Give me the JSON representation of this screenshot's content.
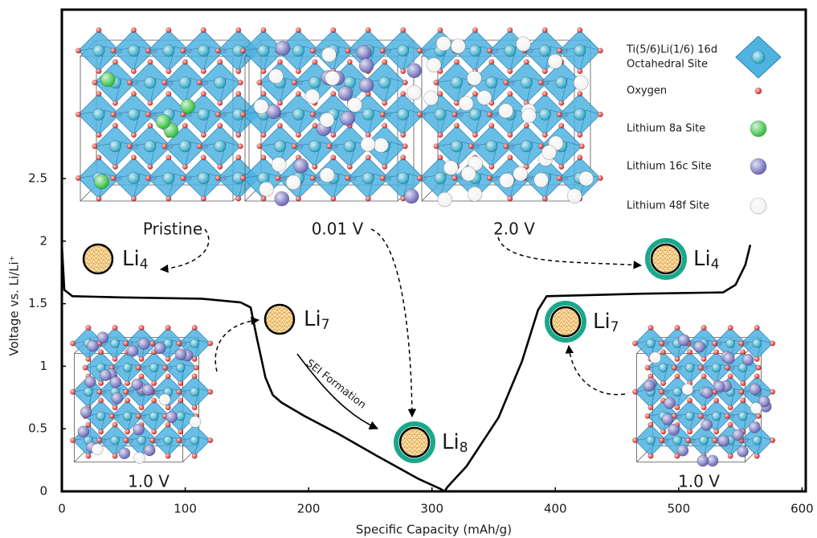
{
  "chart_data": {
    "type": "line",
    "x_label": "Specific Capacity (mAh/g)",
    "y_label": "Voltage vs. Li/Li⁺",
    "x": [
      0,
      2,
      8.5,
      47.6,
      113,
      145,
      153,
      158,
      165,
      171,
      178,
      197,
      224,
      256,
      289,
      307,
      310,
      313,
      328,
      354,
      373,
      386,
      393,
      471,
      536,
      546,
      554,
      558
    ],
    "series": [
      {
        "color": "#000000",
        "values": [
          1.97,
          1.61,
          1.56,
          1.55,
          1.54,
          1.51,
          1.47,
          1.23,
          0.91,
          0.77,
          0.71,
          0.6,
          0.46,
          0.28,
          0.1,
          0.02,
          0,
          0.04,
          0.2,
          0.59,
          1.04,
          1.45,
          1.56,
          1.58,
          1.59,
          1.65,
          1.81,
          1.97
        ]
      }
    ],
    "xlim": [
      0,
      603
    ],
    "ylim": [
      0,
      3.85
    ],
    "xticks": [
      0,
      100,
      200,
      300,
      400,
      500,
      600
    ],
    "yticks": [
      0,
      0.5,
      1,
      1.5,
      2,
      2.5
    ],
    "structures": [
      {
        "label": "Pristine"
      },
      {
        "label": "0.01 V"
      },
      {
        "label": "2.0 V"
      },
      {
        "label": "1.0 V"
      },
      {
        "label": "1.0 V"
      }
    ],
    "particles": [
      {
        "base": "Li",
        "sub": "4"
      },
      {
        "base": "Li",
        "sub": "7"
      },
      {
        "base": "Li",
        "sub": "8",
        "ring": "#1aa88a"
      },
      {
        "base": "Li",
        "sub": "7",
        "ring": "#1aa88a"
      },
      {
        "base": "Li",
        "sub": "4",
        "ring": "#1aa88a"
      }
    ],
    "sei_label": "SEI Formation",
    "legend_items": [
      {
        "lines": [
          "Ti(5/6)Li(1/6) 16d",
          "Octahedral Site"
        ],
        "color": "#4fb3e0"
      },
      {
        "lines": [
          "Oxygen"
        ],
        "color": "#e3261f"
      },
      {
        "lines": [
          "Lithium 8a Site"
        ],
        "color": "#2fbf3a"
      },
      {
        "lines": [
          "Lithium 16c Site"
        ],
        "color": "#6a68b8"
      },
      {
        "lines": [
          "Lithium 48f Site"
        ],
        "color": "#f2f2f2"
      }
    ]
  }
}
